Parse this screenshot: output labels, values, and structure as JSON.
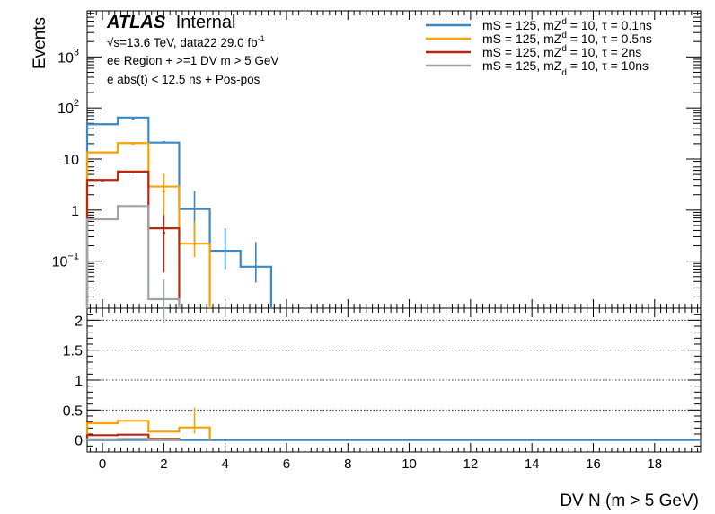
{
  "chart_data": [
    {
      "type": "line",
      "panel": "top",
      "y_scale": "log",
      "ylabel": "Events",
      "ylim": [
        0.012,
        8000
      ],
      "xlim": [
        -0.5,
        19.5
      ],
      "y_tick_labels": [
        {
          "value": 0.1,
          "base": "10",
          "exp": "−1"
        },
        {
          "value": 1,
          "base": "1",
          "exp": ""
        },
        {
          "value": 10,
          "base": "10",
          "exp": ""
        },
        {
          "value": 100,
          "base": "10",
          "exp": "2"
        },
        {
          "value": 1000,
          "base": "10",
          "exp": "3"
        }
      ],
      "atlas_label": {
        "bold": "ATLAS",
        "rest": "Internal"
      },
      "annotations": {
        "line1_prefix": "√s=13.6 TeV, data22 29.0 fb",
        "line1_sup": "-1",
        "line2": "ee Region + >=1 DV m > 5 GeV",
        "line3": "e abs(t) < 12.5 ns + Pos-pos"
      },
      "legend_position": "top-right",
      "series": [
        {
          "name": "mS = 125, mZd = 10, τ = 0.1ns",
          "legend_a": "mS = 125, mZ",
          "legend_sup": "d",
          "legend_b": " = 10, τ = 0.1ns",
          "color": "#3a88c4",
          "bins": [
            0,
            1,
            2,
            3,
            4,
            5
          ],
          "values": [
            48,
            65,
            21,
            1.05,
            0.16,
            0.078
          ],
          "markers": [
            48,
            62,
            21.5,
            1.05,
            0.16,
            0.078
          ],
          "errors": [
            [
              0,
              0
            ],
            [
              0,
              0
            ],
            [
              0,
              0
            ],
            [
              0.82,
              1.32
            ],
            [
              0.09,
              0.28
            ],
            [
              0.04,
              0.16
            ]
          ]
        },
        {
          "name": "mS = 125, mZd = 10, τ = 0.5ns",
          "legend_a": "mS = 125, mZ",
          "legend_sup": "d",
          "legend_b": " = 10, τ = 0.5ns",
          "color": "#f5a300",
          "bins": [
            0,
            1,
            2,
            3
          ],
          "values": [
            13.5,
            20.5,
            2.9,
            0.22
          ],
          "markers": [
            13.5,
            20,
            2.3,
            0.22
          ],
          "errors": [
            [
              0,
              0
            ],
            [
              0,
              0
            ],
            [
              1.9,
              2.9
            ],
            [
              0.1,
              0.38
            ]
          ]
        },
        {
          "name": "mS = 125, mZd = 10, τ = 2ns",
          "legend_a": "mS = 125, mZ",
          "legend_sup": "d",
          "legend_b": " = 10, τ = 2ns",
          "color": "#b52a10",
          "bins": [
            0,
            1,
            2
          ],
          "values": [
            3.9,
            5.7,
            0.44
          ],
          "markers": [
            3.8,
            5.5,
            0.36
          ],
          "errors": [
            [
              0,
              0
            ],
            [
              0,
              0
            ],
            [
              0.3,
              0.44
            ]
          ]
        },
        {
          "name": "mS = 125, mZd = 10, τ = 10ns",
          "legend_a": "mS = 125, mZ",
          "legend_sup": "d",
          "legend_b": " = 10, τ = 10ns",
          "color": "#9ea3a6",
          "bins": [
            0,
            1,
            2
          ],
          "values": [
            0.66,
            1.2,
            0.018
          ],
          "markers": [
            0.66,
            1.2,
            0.018
          ],
          "errors": [
            [
              0,
              0
            ],
            [
              0,
              0
            ],
            [
              0.013,
              0.026
            ]
          ]
        }
      ]
    },
    {
      "type": "line",
      "panel": "ratio",
      "ylim": [
        -0.2,
        2.2
      ],
      "xlim": [
        -0.5,
        19.5
      ],
      "xlabel": "DV N (m > 5 GeV)",
      "y_ticks": [
        0,
        0.5,
        1,
        1.5,
        2
      ],
      "y_tick_labels": [
        "0",
        "0.5",
        "1",
        "1.5",
        "2"
      ],
      "x_ticks": [
        0,
        2,
        4,
        6,
        8,
        10,
        12,
        14,
        16,
        18
      ],
      "x_tick_labels": [
        "0",
        "2",
        "4",
        "6",
        "8",
        "10",
        "12",
        "14",
        "16",
        "18"
      ],
      "grid_y": [
        0.5,
        1,
        1.5,
        2
      ],
      "series": [
        {
          "color": "#f5a300",
          "bins": [
            0,
            1,
            2,
            3
          ],
          "values": [
            0.28,
            0.32,
            0.14,
            0.21
          ],
          "errors": [
            [
              0,
              0
            ],
            [
              0,
              0
            ],
            [
              0,
              0
            ],
            [
              0.1,
              0.33
            ]
          ]
        },
        {
          "color": "#b52a10",
          "bins": [
            0,
            1,
            2
          ],
          "values": [
            0.08,
            0.09,
            0.02
          ],
          "errors": [
            [
              0,
              0
            ],
            [
              0,
              0
            ],
            [
              0,
              0
            ]
          ]
        },
        {
          "color": "#9ea3a6",
          "bins": [
            0,
            1,
            2
          ],
          "values": [
            0.015,
            0.02,
            0.001
          ],
          "errors": [
            [
              0,
              0
            ],
            [
              0,
              0
            ],
            [
              0,
              0
            ]
          ]
        }
      ],
      "baseline": {
        "color": "#3a88c4",
        "value": 0
      }
    }
  ]
}
